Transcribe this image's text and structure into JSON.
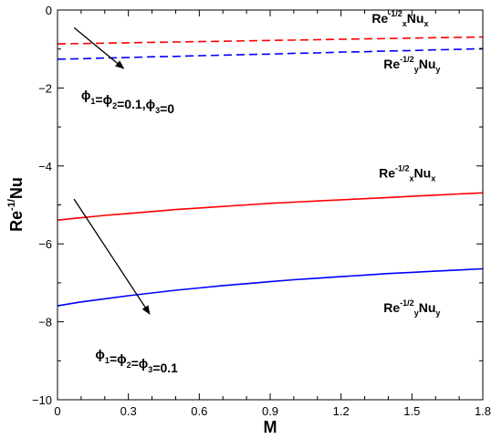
{
  "chart_data": {
    "type": "line",
    "xlabel": "M",
    "ylabel": "Re",
    "ylabel_sup": "-1/",
    "ylabel_tail": "Nu",
    "xlim": [
      0,
      1.8
    ],
    "ylim": [
      -10,
      0
    ],
    "xticks": [
      0,
      0.3,
      0.6,
      0.9,
      1.2,
      1.5,
      1.8
    ],
    "xtick_labels": [
      "0",
      "0.3",
      "0.6",
      "0.9",
      "1.2",
      "1.5",
      "1.8"
    ],
    "yticks": [
      0,
      -2,
      -4,
      -6,
      -8,
      -10
    ],
    "ytick_labels": [
      "0",
      "−2",
      "−4",
      "−6",
      "−8",
      "−10"
    ],
    "grid": false,
    "series": [
      {
        "group": "phi3_0",
        "style": "dashed",
        "color": "#ff0000",
        "x": [
          0,
          0.1,
          0.2,
          0.3,
          0.4,
          0.5,
          0.6,
          0.7,
          0.8,
          0.9,
          1.0,
          1.1,
          1.2,
          1.3,
          1.4,
          1.5,
          1.6,
          1.7,
          1.8
        ],
        "y": [
          -0.87,
          -0.86,
          -0.85,
          -0.84,
          -0.83,
          -0.82,
          -0.81,
          -0.8,
          -0.79,
          -0.78,
          -0.77,
          -0.76,
          -0.75,
          -0.74,
          -0.73,
          -0.72,
          -0.71,
          -0.7,
          -0.69
        ]
      },
      {
        "group": "phi3_0",
        "style": "dashed",
        "color": "#0000ff",
        "x": [
          0,
          0.1,
          0.2,
          0.3,
          0.4,
          0.5,
          0.6,
          0.7,
          0.8,
          0.9,
          1.0,
          1.1,
          1.2,
          1.3,
          1.4,
          1.5,
          1.6,
          1.7,
          1.8
        ],
        "y": [
          -1.26,
          -1.25,
          -1.23,
          -1.22,
          -1.2,
          -1.19,
          -1.17,
          -1.16,
          -1.14,
          -1.13,
          -1.11,
          -1.1,
          -1.08,
          -1.07,
          -1.05,
          -1.04,
          -1.02,
          -1.01,
          -0.99
        ]
      },
      {
        "group": "phi3_0.1",
        "style": "solid",
        "color": "#ff0000",
        "x": [
          0,
          0.1,
          0.2,
          0.3,
          0.4,
          0.5,
          0.6,
          0.7,
          0.8,
          0.9,
          1.0,
          1.1,
          1.2,
          1.3,
          1.4,
          1.5,
          1.6,
          1.7,
          1.8
        ],
        "y": [
          -5.39,
          -5.33,
          -5.27,
          -5.22,
          -5.17,
          -5.12,
          -5.08,
          -5.04,
          -5.0,
          -4.96,
          -4.93,
          -4.9,
          -4.87,
          -4.84,
          -4.81,
          -4.78,
          -4.75,
          -4.72,
          -4.69
        ]
      },
      {
        "group": "phi3_0.1",
        "style": "solid",
        "color": "#0000ff",
        "x": [
          0,
          0.1,
          0.2,
          0.3,
          0.4,
          0.5,
          0.6,
          0.7,
          0.8,
          0.9,
          1.0,
          1.1,
          1.2,
          1.3,
          1.4,
          1.5,
          1.6,
          1.7,
          1.8
        ],
        "y": [
          -7.59,
          -7.49,
          -7.41,
          -7.33,
          -7.26,
          -7.19,
          -7.13,
          -7.07,
          -7.02,
          -6.97,
          -6.92,
          -6.88,
          -6.84,
          -6.8,
          -6.76,
          -6.73,
          -6.7,
          -6.67,
          -6.64
        ]
      }
    ],
    "curve_labels": [
      {
        "base": "Re",
        "sup": "-1/2",
        "sub": "x",
        "tail": "Nu",
        "tail_sub": "x",
        "x": 1.33,
        "y": -0.33
      },
      {
        "base": "Re",
        "sup": "-1/2",
        "sub": "y",
        "tail": "Nu",
        "tail_sub": "y",
        "x": 1.38,
        "y": -1.5
      },
      {
        "base": "Re",
        "sup": "-1/2",
        "sub": "x",
        "tail": "Nu",
        "tail_sub": "x",
        "x": 1.36,
        "y": -4.3
      },
      {
        "base": "Re",
        "sup": "-1/2",
        "sub": "y",
        "tail": "Nu",
        "tail_sub": "y",
        "x": 1.38,
        "y": -7.75
      }
    ],
    "annotations": [
      {
        "parts": [
          [
            "ϕ",
            "1"
          ],
          [
            "=ϕ",
            "2"
          ],
          [
            "=0.1,ϕ",
            "3"
          ],
          [
            "=0",
            ""
          ]
        ],
        "text_x": 0.1,
        "text_y": -2.3,
        "arrow_from": [
          0.07,
          -0.45
        ],
        "arrow_to": [
          0.28,
          -1.5
        ]
      },
      {
        "parts": [
          [
            "ϕ",
            "1"
          ],
          [
            "=ϕ",
            "2"
          ],
          [
            "=ϕ",
            "3"
          ],
          [
            "=0.1",
            ""
          ]
        ],
        "text_x": 0.16,
        "text_y": -8.95,
        "arrow_from": [
          0.07,
          -4.85
        ],
        "arrow_to": [
          0.39,
          -7.8
        ]
      }
    ]
  }
}
